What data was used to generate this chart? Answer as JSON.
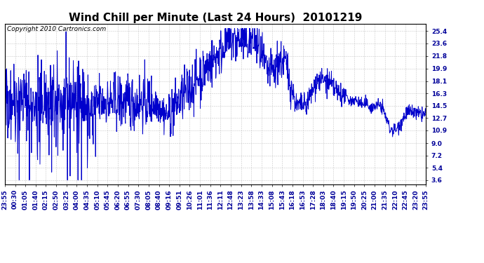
{
  "title": "Wind Chill per Minute (Last 24 Hours)  20101219",
  "copyright_text": "Copyright 2010 Cartronics.com",
  "line_color": "#0000CC",
  "background_color": "#FFFFFF",
  "plot_bg_color": "#FFFFFF",
  "grid_color": "#BBBBBB",
  "yticks": [
    3.6,
    5.4,
    7.2,
    9.0,
    10.9,
    12.7,
    14.5,
    16.3,
    18.1,
    19.9,
    21.8,
    23.6,
    25.4
  ],
  "ylim": [
    3.0,
    26.5
  ],
  "xtick_labels": [
    "23:55",
    "00:30",
    "01:05",
    "01:40",
    "02:15",
    "02:50",
    "03:25",
    "04:00",
    "04:35",
    "05:10",
    "05:45",
    "06:20",
    "06:55",
    "07:30",
    "08:05",
    "08:40",
    "09:16",
    "09:51",
    "10:26",
    "11:01",
    "11:36",
    "12:11",
    "12:48",
    "13:23",
    "13:58",
    "14:33",
    "15:08",
    "15:43",
    "16:18",
    "16:53",
    "17:28",
    "18:03",
    "18:40",
    "19:15",
    "19:50",
    "20:25",
    "21:00",
    "21:35",
    "22:10",
    "22:45",
    "23:20",
    "23:55"
  ],
  "title_fontsize": 11,
  "axis_fontsize": 6.5,
  "copyright_fontsize": 6.5,
  "line_width": 0.7,
  "figsize": [
    6.9,
    3.75
  ],
  "dpi": 100
}
